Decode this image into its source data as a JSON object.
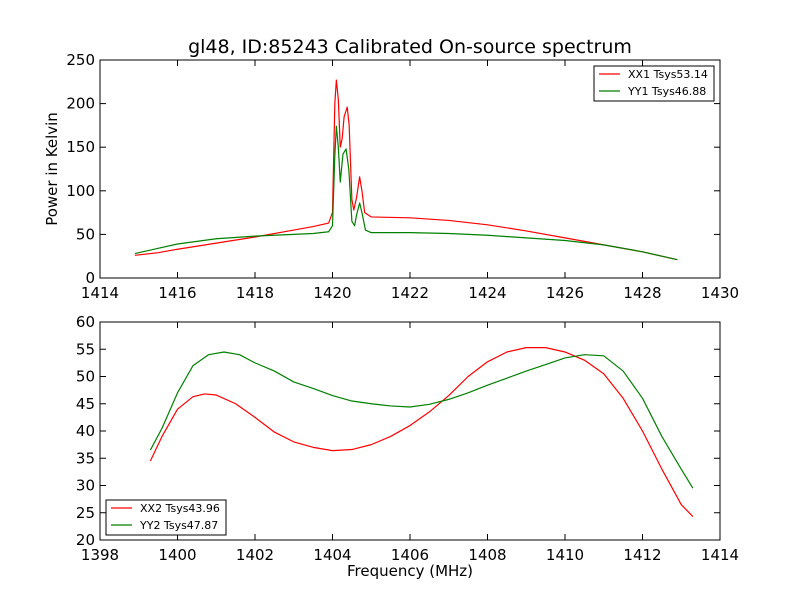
{
  "title": "gl48, ID:85243 Calibrated On-source spectrum",
  "chart_data": [
    {
      "type": "line",
      "title": "gl48, ID:85243 Calibrated On-source spectrum",
      "xlabel": "",
      "ylabel": "Power in Kelvin",
      "xlim": [
        1414,
        1430
      ],
      "ylim": [
        0,
        250
      ],
      "xticks": [
        1414,
        1416,
        1418,
        1420,
        1422,
        1424,
        1426,
        1428,
        1430
      ],
      "yticks": [
        0,
        50,
        100,
        150,
        200,
        250
      ],
      "grid": false,
      "legend_position": "top-right",
      "series": [
        {
          "name": "XX1 Tsys53.14",
          "color": "#ff0000",
          "points": [
            [
              1414.9,
              26
            ],
            [
              1415.5,
              29
            ],
            [
              1416,
              33
            ],
            [
              1417,
              40
            ],
            [
              1418,
              47
            ],
            [
              1419,
              55
            ],
            [
              1419.5,
              59
            ],
            [
              1419.9,
              63
            ],
            [
              1420.0,
              75
            ],
            [
              1420.06,
              200
            ],
            [
              1420.1,
              227
            ],
            [
              1420.15,
              205
            ],
            [
              1420.2,
              150
            ],
            [
              1420.25,
              160
            ],
            [
              1420.3,
              185
            ],
            [
              1420.38,
              196
            ],
            [
              1420.43,
              175
            ],
            [
              1420.5,
              90
            ],
            [
              1420.55,
              78
            ],
            [
              1420.62,
              92
            ],
            [
              1420.7,
              116
            ],
            [
              1420.76,
              100
            ],
            [
              1420.83,
              75
            ],
            [
              1421,
              70
            ],
            [
              1422,
              69
            ],
            [
              1423,
              66
            ],
            [
              1424,
              61
            ],
            [
              1425,
              54
            ],
            [
              1426,
              46
            ],
            [
              1427,
              38
            ],
            [
              1428,
              30
            ],
            [
              1428.9,
              21
            ]
          ]
        },
        {
          "name": "YY1 Tsys46.88",
          "color": "#008000",
          "points": [
            [
              1414.9,
              28
            ],
            [
              1415.5,
              34
            ],
            [
              1416,
              39
            ],
            [
              1417,
              45
            ],
            [
              1418,
              48
            ],
            [
              1419,
              50
            ],
            [
              1419.5,
              51
            ],
            [
              1419.9,
              53
            ],
            [
              1420.0,
              60
            ],
            [
              1420.06,
              140
            ],
            [
              1420.1,
              174
            ],
            [
              1420.15,
              150
            ],
            [
              1420.2,
              110
            ],
            [
              1420.27,
              142
            ],
            [
              1420.35,
              148
            ],
            [
              1420.42,
              125
            ],
            [
              1420.5,
              65
            ],
            [
              1420.57,
              60
            ],
            [
              1420.62,
              72
            ],
            [
              1420.7,
              86
            ],
            [
              1420.76,
              75
            ],
            [
              1420.85,
              55
            ],
            [
              1421,
              52
            ],
            [
              1422,
              52
            ],
            [
              1423,
              51
            ],
            [
              1424,
              49
            ],
            [
              1425,
              46
            ],
            [
              1426,
              43
            ],
            [
              1427,
              38
            ],
            [
              1428,
              30
            ],
            [
              1428.9,
              21
            ]
          ]
        }
      ]
    },
    {
      "type": "line",
      "title": "",
      "xlabel": "Frequency (MHz)",
      "ylabel": "",
      "xlim": [
        1398,
        1414
      ],
      "ylim": [
        20,
        60
      ],
      "xticks": [
        1398,
        1400,
        1402,
        1404,
        1406,
        1408,
        1410,
        1412,
        1414
      ],
      "yticks": [
        20,
        25,
        30,
        35,
        40,
        45,
        50,
        55,
        60
      ],
      "grid": false,
      "legend_position": "bottom-left",
      "series": [
        {
          "name": "XX2 Tsys43.96",
          "color": "#ff0000",
          "points": [
            [
              1399.3,
              34.5
            ],
            [
              1399.6,
              39
            ],
            [
              1400,
              44
            ],
            [
              1400.4,
              46.3
            ],
            [
              1400.7,
              46.8
            ],
            [
              1401,
              46.6
            ],
            [
              1401.5,
              45
            ],
            [
              1402,
              42.5
            ],
            [
              1402.5,
              39.8
            ],
            [
              1403,
              38
            ],
            [
              1403.5,
              37
            ],
            [
              1404,
              36.4
            ],
            [
              1404.5,
              36.6
            ],
            [
              1405,
              37.5
            ],
            [
              1405.5,
              39
            ],
            [
              1406,
              41
            ],
            [
              1406.5,
              43.5
            ],
            [
              1407,
              46.5
            ],
            [
              1407.5,
              50
            ],
            [
              1408,
              52.7
            ],
            [
              1408.5,
              54.5
            ],
            [
              1409,
              55.3
            ],
            [
              1409.5,
              55.3
            ],
            [
              1410,
              54.5
            ],
            [
              1410.5,
              53
            ],
            [
              1411,
              50.5
            ],
            [
              1411.5,
              46
            ],
            [
              1412,
              40
            ],
            [
              1412.5,
              33
            ],
            [
              1413,
              26.5
            ],
            [
              1413.3,
              24.3
            ]
          ]
        },
        {
          "name": "YY2 Tsys47.87",
          "color": "#008000",
          "points": [
            [
              1399.3,
              36.5
            ],
            [
              1399.6,
              40.5
            ],
            [
              1400,
              47
            ],
            [
              1400.4,
              52
            ],
            [
              1400.8,
              54
            ],
            [
              1401.2,
              54.5
            ],
            [
              1401.6,
              54
            ],
            [
              1402,
              52.5
            ],
            [
              1402.5,
              51
            ],
            [
              1403,
              49
            ],
            [
              1403.5,
              47.8
            ],
            [
              1404,
              46.5
            ],
            [
              1404.5,
              45.5
            ],
            [
              1405,
              45
            ],
            [
              1405.5,
              44.6
            ],
            [
              1406,
              44.4
            ],
            [
              1406.5,
              44.9
            ],
            [
              1407,
              45.8
            ],
            [
              1407.5,
              47
            ],
            [
              1408,
              48.4
            ],
            [
              1408.5,
              49.7
            ],
            [
              1409,
              51
            ],
            [
              1409.5,
              52.2
            ],
            [
              1410,
              53.4
            ],
            [
              1410.5,
              54
            ],
            [
              1411,
              53.8
            ],
            [
              1411.5,
              51
            ],
            [
              1412,
              46
            ],
            [
              1412.5,
              39
            ],
            [
              1413,
              33
            ],
            [
              1413.3,
              29.5
            ]
          ]
        }
      ]
    }
  ]
}
